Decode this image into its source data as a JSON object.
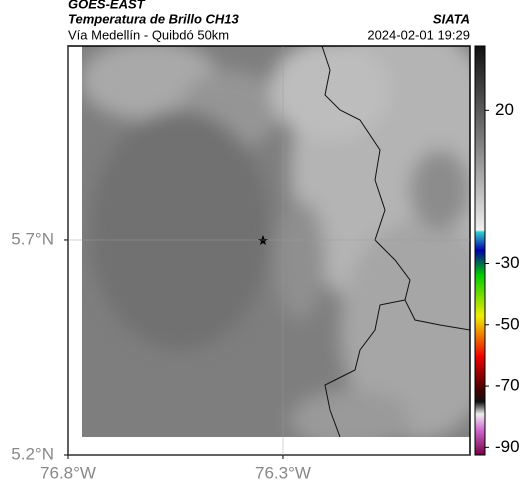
{
  "header": {
    "title": "GOES-EAST",
    "subtitle": "Temperatura de Brillo CH13",
    "region": "Vía Medellín - Quibdó 50km",
    "source": "SIATA",
    "datetime": "2024-02-01 19:29"
  },
  "map": {
    "xlim": [
      -76.8,
      -75.865
    ],
    "ylim": [
      5.2,
      6.151
    ],
    "xticks": [
      {
        "value": -76.8,
        "label": "76.8°W"
      },
      {
        "value": -76.3,
        "label": "76.3°W"
      }
    ],
    "yticks": [
      {
        "value": 5.7,
        "label": "5.7°N"
      },
      {
        "value": 5.2,
        "label": "5.2°N"
      }
    ],
    "grid": true
  },
  "colorbar": {
    "lim": [
      41,
      -92.5
    ],
    "ticks": [
      20,
      -30,
      -50,
      -70,
      -90
    ]
  }
}
